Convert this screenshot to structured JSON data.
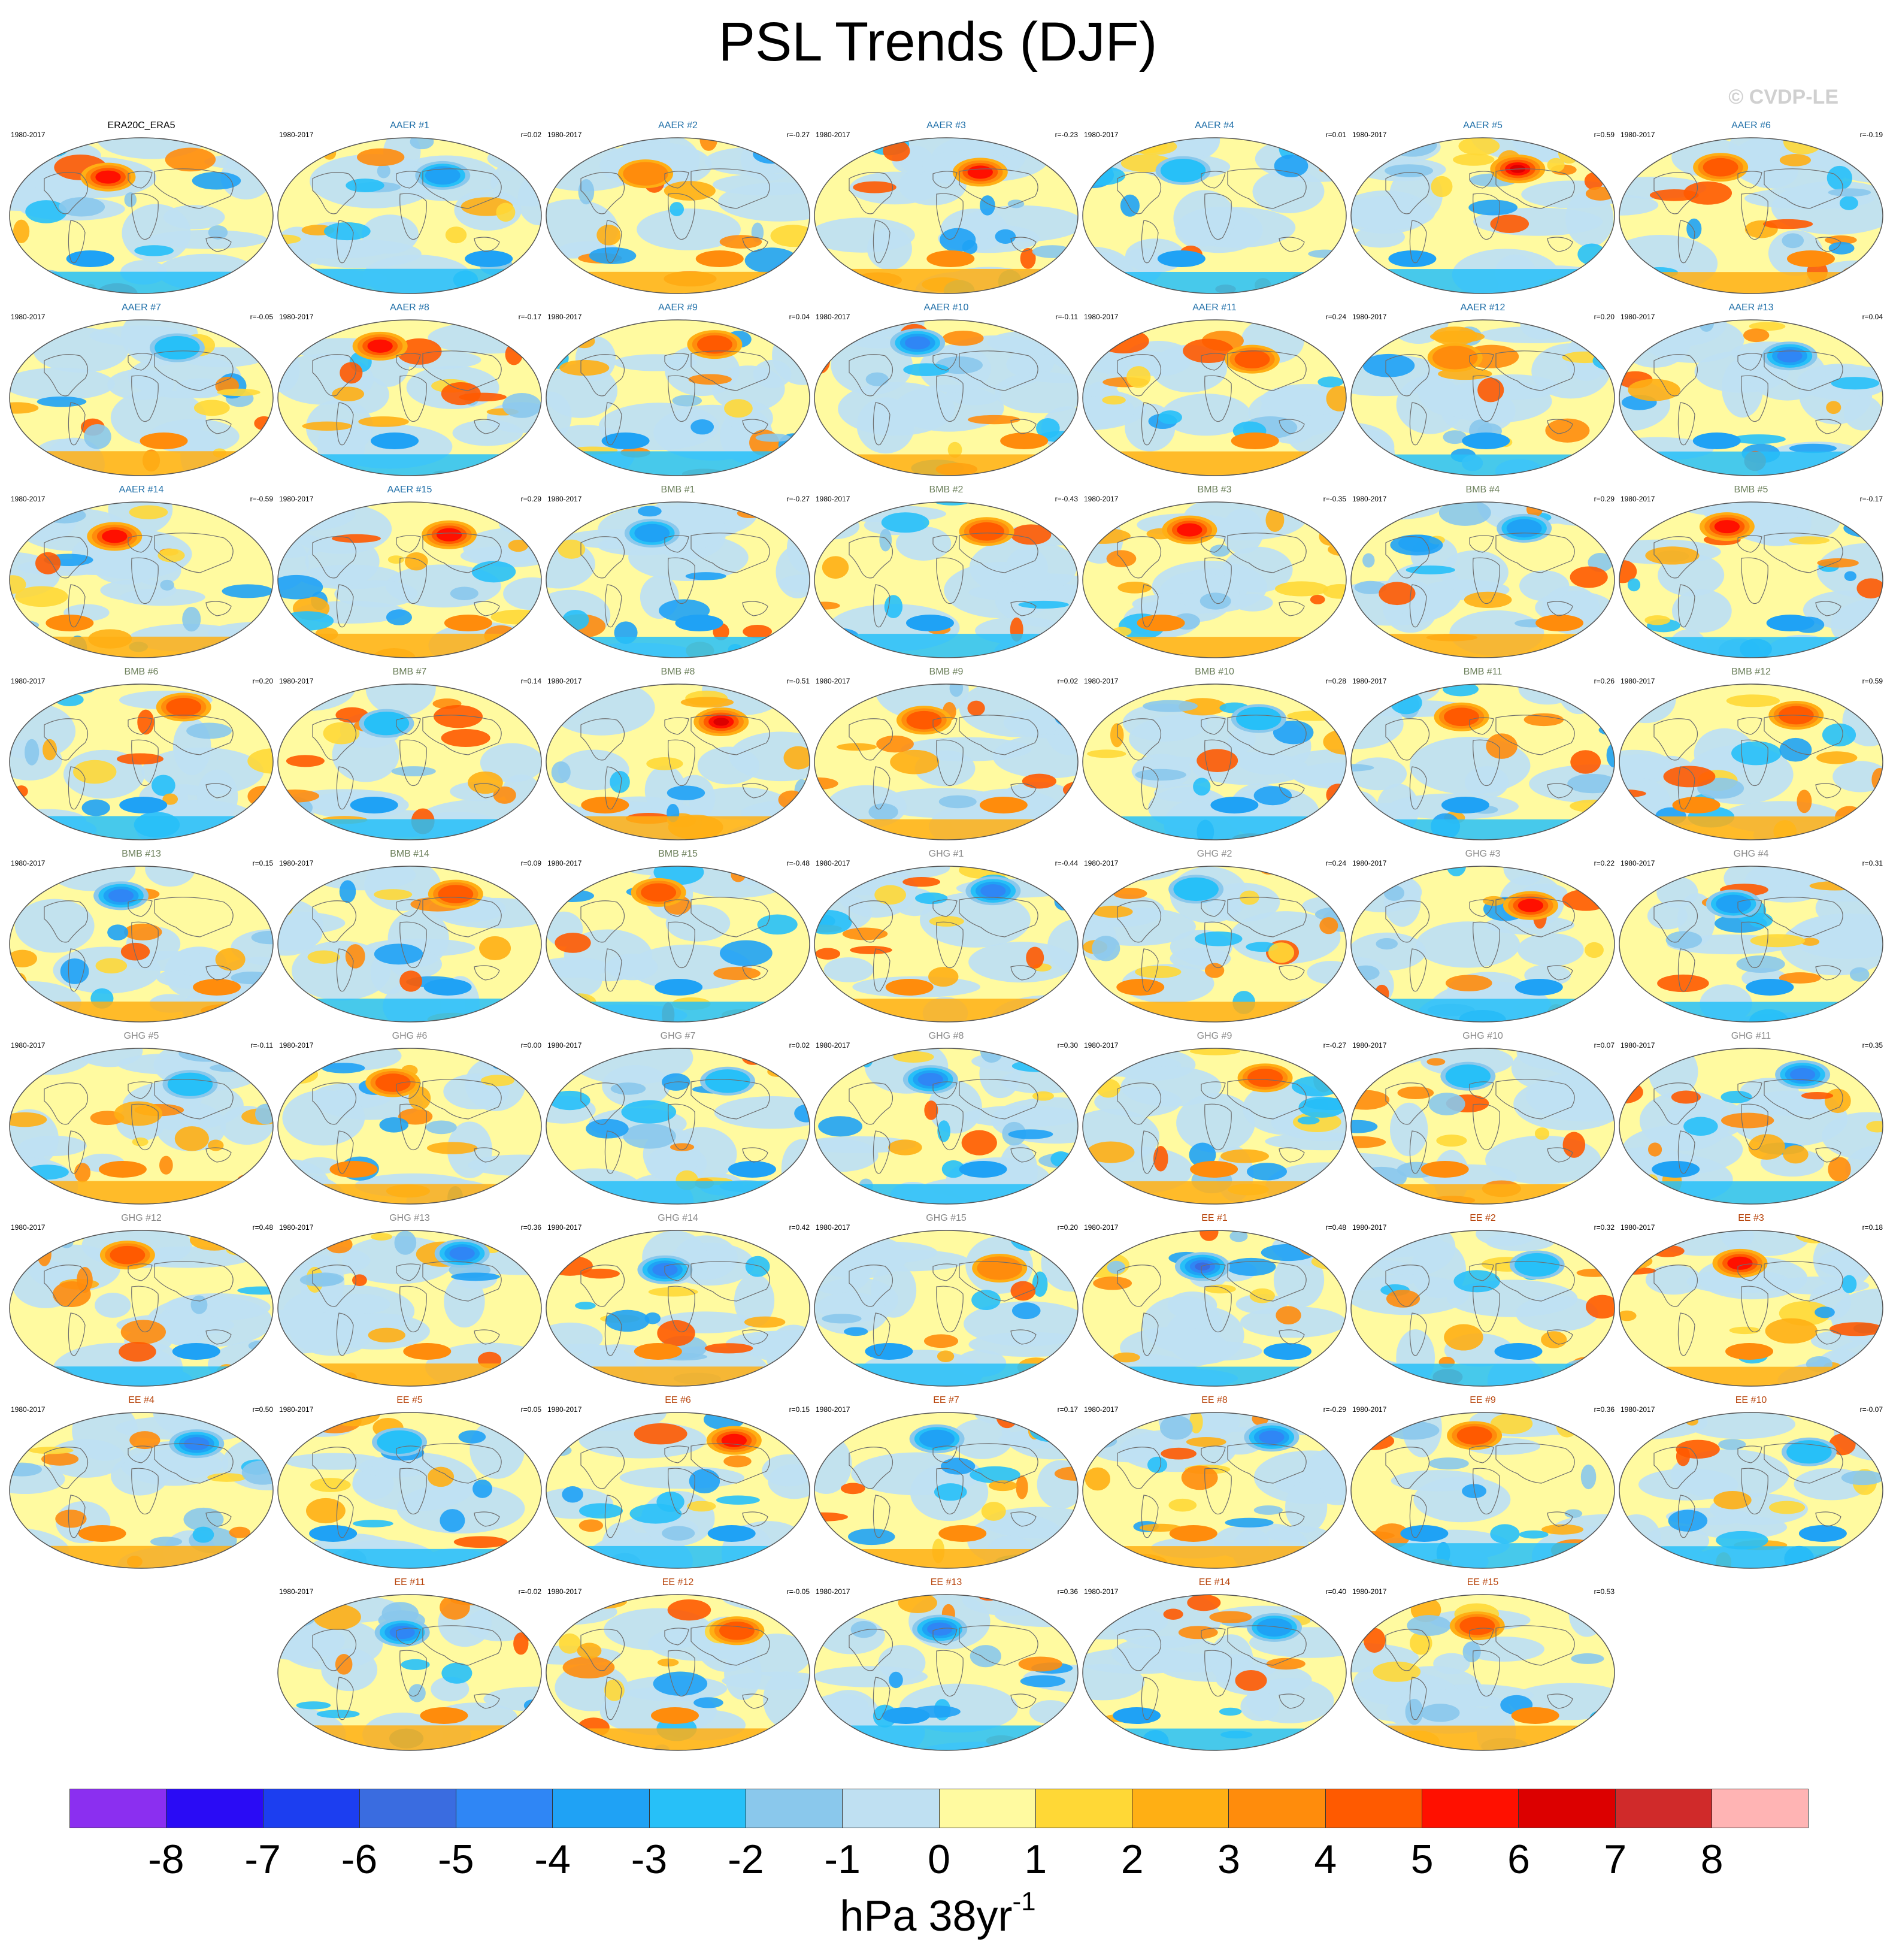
{
  "title": "PSL Trends (DJF)",
  "credit": "© CVDP-LE",
  "units": {
    "base": "hPa 38yr",
    "exponent": "-1"
  },
  "group_colors": {
    "ERA20C_ERA5": "#000000",
    "AAER": "#1f6fa8",
    "BMB": "#6b7f5a",
    "GHG": "#8a8a8a",
    "EE": "#b8460e"
  },
  "colorbar": {
    "colors": [
      "#8b2ff0",
      "#2a0bf5",
      "#1c3ef0",
      "#3a6ce0",
      "#2f86f5",
      "#1fa2f5",
      "#27c0f8",
      "#8ac8ec",
      "#bfe0f2",
      "#fffaa0",
      "#ffd836",
      "#ffaf14",
      "#ff8c0c",
      "#ff5a00",
      "#ff1000",
      "#dc0000",
      "#d02a2a",
      "#ffb4b4"
    ],
    "tick_labels": [
      "-8",
      "-7",
      "-6",
      "-5",
      "-4",
      "-3",
      "-2",
      "-1",
      "0",
      "1",
      "2",
      "3",
      "4",
      "5",
      "6",
      "7",
      "8"
    ]
  },
  "panels": [
    {
      "name": "ERA20C_ERA5",
      "period": "1980-2017",
      "r": ""
    },
    {
      "name": "AAER #1",
      "period": "1980-2017",
      "r": "r=0.02"
    },
    {
      "name": "AAER #2",
      "period": "1980-2017",
      "r": "r=-0.27"
    },
    {
      "name": "AAER #3",
      "period": "1980-2017",
      "r": "r=-0.23"
    },
    {
      "name": "AAER #4",
      "period": "1980-2017",
      "r": "r=0.01"
    },
    {
      "name": "AAER #5",
      "period": "1980-2017",
      "r": "r=0.59"
    },
    {
      "name": "AAER #6",
      "period": "1980-2017",
      "r": "r=-0.19"
    },
    {
      "name": "AAER #7",
      "period": "1980-2017",
      "r": "r=-0.05"
    },
    {
      "name": "AAER #8",
      "period": "1980-2017",
      "r": "r=-0.17"
    },
    {
      "name": "AAER #9",
      "period": "1980-2017",
      "r": "r=0.04"
    },
    {
      "name": "AAER #10",
      "period": "1980-2017",
      "r": "r=-0.11"
    },
    {
      "name": "AAER #11",
      "period": "1980-2017",
      "r": "r=0.24"
    },
    {
      "name": "AAER #12",
      "period": "1980-2017",
      "r": "r=0.20"
    },
    {
      "name": "AAER #13",
      "period": "1980-2017",
      "r": "r=0.04"
    },
    {
      "name": "AAER #14",
      "period": "1980-2017",
      "r": "r=-0.59"
    },
    {
      "name": "AAER #15",
      "period": "1980-2017",
      "r": "r=0.29"
    },
    {
      "name": "BMB #1",
      "period": "1980-2017",
      "r": "r=-0.27"
    },
    {
      "name": "BMB #2",
      "period": "1980-2017",
      "r": "r=-0.43"
    },
    {
      "name": "BMB #3",
      "period": "1980-2017",
      "r": "r=-0.35"
    },
    {
      "name": "BMB #4",
      "period": "1980-2017",
      "r": "r=0.29"
    },
    {
      "name": "BMB #5",
      "period": "1980-2017",
      "r": "r=-0.17"
    },
    {
      "name": "BMB #6",
      "period": "1980-2017",
      "r": "r=0.20"
    },
    {
      "name": "BMB #7",
      "period": "1980-2017",
      "r": "r=0.14"
    },
    {
      "name": "BMB #8",
      "period": "1980-2017",
      "r": "r=-0.51"
    },
    {
      "name": "BMB #9",
      "period": "1980-2017",
      "r": "r=0.02"
    },
    {
      "name": "BMB #10",
      "period": "1980-2017",
      "r": "r=0.28"
    },
    {
      "name": "BMB #11",
      "period": "1980-2017",
      "r": "r=0.26"
    },
    {
      "name": "BMB #12",
      "period": "1980-2017",
      "r": "r=0.59"
    },
    {
      "name": "BMB #13",
      "period": "1980-2017",
      "r": "r=0.15"
    },
    {
      "name": "BMB #14",
      "period": "1980-2017",
      "r": "r=0.09"
    },
    {
      "name": "BMB #15",
      "period": "1980-2017",
      "r": "r=-0.48"
    },
    {
      "name": "GHG #1",
      "period": "1980-2017",
      "r": "r=-0.44"
    },
    {
      "name": "GHG #2",
      "period": "1980-2017",
      "r": "r=0.24"
    },
    {
      "name": "GHG #3",
      "period": "1980-2017",
      "r": "r=0.22"
    },
    {
      "name": "GHG #4",
      "period": "1980-2017",
      "r": "r=0.31"
    },
    {
      "name": "GHG #5",
      "period": "1980-2017",
      "r": "r=-0.11"
    },
    {
      "name": "GHG #6",
      "period": "1980-2017",
      "r": "r=0.00"
    },
    {
      "name": "GHG #7",
      "period": "1980-2017",
      "r": "r=0.02"
    },
    {
      "name": "GHG #8",
      "period": "1980-2017",
      "r": "r=0.30"
    },
    {
      "name": "GHG #9",
      "period": "1980-2017",
      "r": "r=-0.27"
    },
    {
      "name": "GHG #10",
      "period": "1980-2017",
      "r": "r=0.07"
    },
    {
      "name": "GHG #11",
      "period": "1980-2017",
      "r": "r=0.35"
    },
    {
      "name": "GHG #12",
      "period": "1980-2017",
      "r": "r=0.48"
    },
    {
      "name": "GHG #13",
      "period": "1980-2017",
      "r": "r=0.36"
    },
    {
      "name": "GHG #14",
      "period": "1980-2017",
      "r": "r=0.42"
    },
    {
      "name": "GHG #15",
      "period": "1980-2017",
      "r": "r=0.20"
    },
    {
      "name": "EE #1",
      "period": "1980-2017",
      "r": "r=0.48"
    },
    {
      "name": "EE #2",
      "period": "1980-2017",
      "r": "r=0.32"
    },
    {
      "name": "EE #3",
      "period": "1980-2017",
      "r": "r=0.18"
    },
    {
      "name": "EE #4",
      "period": "1980-2017",
      "r": "r=0.50"
    },
    {
      "name": "EE #5",
      "period": "1980-2017",
      "r": "r=0.05"
    },
    {
      "name": "EE #6",
      "period": "1980-2017",
      "r": "r=0.15"
    },
    {
      "name": "EE #7",
      "period": "1980-2017",
      "r": "r=0.17"
    },
    {
      "name": "EE #8",
      "period": "1980-2017",
      "r": "r=-0.29"
    },
    {
      "name": "EE #9",
      "period": "1980-2017",
      "r": "r=0.36"
    },
    {
      "name": "EE #10",
      "period": "1980-2017",
      "r": "r=-0.07"
    },
    {
      "name": "EE #11",
      "period": "1980-2017",
      "r": "r=-0.02"
    },
    {
      "name": "EE #12",
      "period": "1980-2017",
      "r": "r=-0.05"
    },
    {
      "name": "EE #13",
      "period": "1980-2017",
      "r": "r=0.36"
    },
    {
      "name": "EE #14",
      "period": "1980-2017",
      "r": "r=0.40"
    },
    {
      "name": "EE #15",
      "period": "1980-2017",
      "r": "r=0.53"
    }
  ],
  "chart_data": {
    "type": "heatmap",
    "title": "PSL Trends (DJF)",
    "variable": "PSL",
    "season": "DJF",
    "period": "1980-2017",
    "units": "hPa 38yr-1",
    "color_levels": [
      -8,
      -7,
      -6,
      -5,
      -4,
      -3,
      -2,
      -1,
      0,
      1,
      2,
      3,
      4,
      5,
      6,
      7,
      8
    ],
    "projection": "global map (Robinson-like)",
    "panel_count": 61,
    "observation_panel": "ERA20C_ERA5",
    "ensembles": [
      "AAER",
      "BMB",
      "GHG",
      "EE"
    ],
    "members_per_ensemble": 15,
    "pattern_correlations": {
      "AAER": [
        0.02,
        -0.27,
        -0.23,
        0.01,
        0.59,
        -0.19,
        -0.05,
        -0.17,
        0.04,
        -0.11,
        0.24,
        0.2,
        0.04,
        -0.59,
        0.29
      ],
      "BMB": [
        -0.27,
        -0.43,
        -0.35,
        0.29,
        -0.17,
        0.2,
        0.14,
        -0.51,
        0.02,
        0.28,
        0.26,
        0.59,
        0.15,
        0.09,
        -0.48
      ],
      "GHG": [
        -0.44,
        0.24,
        0.22,
        0.31,
        -0.11,
        0.0,
        0.02,
        0.3,
        -0.27,
        0.07,
        0.35,
        0.48,
        0.36,
        0.42,
        0.2
      ],
      "EE": [
        0.48,
        0.32,
        0.18,
        0.5,
        0.05,
        0.15,
        0.17,
        -0.29,
        0.36,
        -0.07,
        -0.02,
        -0.05,
        0.36,
        0.4,
        0.53
      ]
    }
  }
}
